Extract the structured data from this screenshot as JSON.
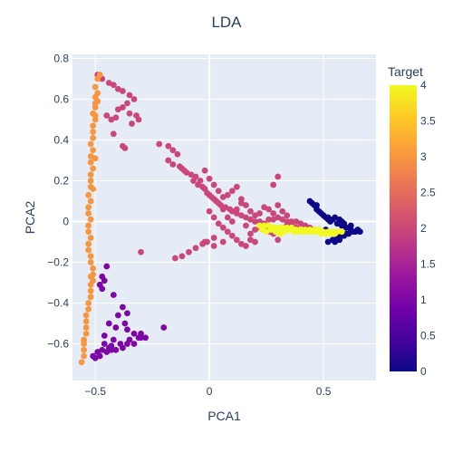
{
  "chart_data": {
    "type": "scatter",
    "title": "LDA",
    "xlabel": "PCA1",
    "ylabel": "PCA2",
    "xlim": [
      -0.6,
      0.73
    ],
    "ylim": [
      -0.78,
      0.82
    ],
    "x_ticks": [
      -0.5,
      0,
      0.5
    ],
    "x_tick_labels": [
      "−0.5",
      "0",
      "0.5"
    ],
    "y_ticks": [
      -0.6,
      -0.4,
      -0.2,
      0,
      0.2,
      0.4,
      0.6,
      0.8
    ],
    "y_tick_labels": [
      "−0.6",
      "−0.4",
      "−0.2",
      "0",
      "0.2",
      "0.4",
      "0.6",
      "0.8"
    ],
    "grid": true,
    "colorbar": {
      "title": "Target",
      "range": [
        0,
        4
      ],
      "ticks": [
        0,
        0.5,
        1,
        1.5,
        2,
        2.5,
        3,
        3.5,
        4
      ],
      "tick_labels": [
        "0",
        "0.5",
        "1",
        "1.5",
        "2",
        "2.5",
        "3",
        "3.5",
        "4"
      ],
      "colorscale": [
        "#0d0887",
        "#46039f",
        "#7201a8",
        "#9c179e",
        "#bd3786",
        "#d8576b",
        "#ed7953",
        "#fb9f3a",
        "#fdca26",
        "#f0f921"
      ]
    },
    "series": [
      {
        "target": 0,
        "points": [
          [
            0.44,
            0.1
          ],
          [
            0.45,
            0.09
          ],
          [
            0.46,
            0.08
          ],
          [
            0.47,
            0.06
          ],
          [
            0.48,
            0.05
          ],
          [
            0.49,
            0.04
          ],
          [
            0.5,
            0.03
          ],
          [
            0.51,
            0.02
          ],
          [
            0.52,
            0.01
          ],
          [
            0.53,
            0.0
          ],
          [
            0.52,
            0.02
          ],
          [
            0.55,
            0.02
          ],
          [
            0.57,
            0.01
          ],
          [
            0.58,
            0.0
          ],
          [
            0.56,
            -0.01
          ],
          [
            0.58,
            -0.02
          ],
          [
            0.6,
            -0.03
          ],
          [
            0.62,
            -0.04
          ],
          [
            0.64,
            -0.05
          ],
          [
            0.66,
            -0.05
          ],
          [
            0.6,
            -0.06
          ],
          [
            0.58,
            -0.07
          ],
          [
            0.56,
            -0.08
          ],
          [
            0.54,
            -0.09
          ],
          [
            0.52,
            -0.1
          ],
          [
            0.55,
            -0.1
          ],
          [
            0.57,
            -0.09
          ],
          [
            0.59,
            -0.07
          ],
          [
            0.61,
            -0.06
          ],
          [
            0.63,
            -0.05
          ],
          [
            0.65,
            -0.04
          ],
          [
            0.54,
            0.01
          ],
          [
            0.56,
            -0.06
          ],
          [
            0.51,
            -0.04
          ],
          [
            0.59,
            -0.01
          ],
          [
            0.62,
            -0.02
          ],
          [
            0.47,
            0.08
          ]
        ]
      },
      {
        "target": 1,
        "points": [
          [
            -0.45,
            -0.22
          ],
          [
            -0.47,
            -0.27
          ],
          [
            -0.46,
            -0.29
          ],
          [
            -0.48,
            -0.31
          ],
          [
            -0.47,
            -0.33
          ],
          [
            -0.42,
            -0.36
          ],
          [
            -0.38,
            -0.42
          ],
          [
            -0.36,
            -0.45
          ],
          [
            -0.4,
            -0.46
          ],
          [
            -0.44,
            -0.5
          ],
          [
            -0.41,
            -0.52
          ],
          [
            -0.36,
            -0.53
          ],
          [
            -0.33,
            -0.55
          ],
          [
            -0.31,
            -0.57
          ],
          [
            -0.35,
            -0.58
          ],
          [
            -0.39,
            -0.6
          ],
          [
            -0.43,
            -0.61
          ],
          [
            -0.47,
            -0.63
          ],
          [
            -0.49,
            -0.64
          ],
          [
            -0.46,
            -0.6
          ],
          [
            -0.44,
            -0.62
          ],
          [
            -0.41,
            -0.63
          ],
          [
            -0.38,
            -0.62
          ],
          [
            -0.36,
            -0.6
          ],
          [
            -0.33,
            -0.6
          ],
          [
            -0.3,
            -0.57
          ],
          [
            -0.2,
            -0.52
          ],
          [
            -0.28,
            -0.57
          ],
          [
            -0.5,
            -0.67
          ],
          [
            -0.51,
            -0.66
          ],
          [
            -0.48,
            -0.66
          ],
          [
            -0.45,
            -0.64
          ],
          [
            -0.43,
            -0.63
          ],
          [
            -0.42,
            -0.58
          ],
          [
            -0.37,
            -0.5
          ],
          [
            -0.3,
            -0.55
          ],
          [
            -0.46,
            -0.56
          ]
        ]
      },
      {
        "target": 2,
        "points": [
          [
            -0.49,
            0.72
          ],
          [
            -0.47,
            0.7
          ],
          [
            -0.44,
            0.68
          ],
          [
            -0.42,
            0.67
          ],
          [
            -0.4,
            0.65
          ],
          [
            -0.38,
            0.64
          ],
          [
            -0.35,
            0.62
          ],
          [
            -0.33,
            0.6
          ],
          [
            -0.36,
            0.58
          ],
          [
            -0.38,
            0.56
          ],
          [
            -0.4,
            0.55
          ],
          [
            -0.35,
            0.53
          ],
          [
            -0.32,
            0.52
          ],
          [
            -0.45,
            0.52
          ],
          [
            -0.41,
            0.51
          ],
          [
            -0.43,
            0.5
          ],
          [
            -0.31,
            0.5
          ],
          [
            -0.34,
            0.48
          ],
          [
            -0.42,
            0.43
          ],
          [
            -0.38,
            0.37
          ],
          [
            -0.37,
            0.36
          ],
          [
            -0.22,
            0.38
          ],
          [
            -0.18,
            0.37
          ],
          [
            -0.16,
            0.35
          ],
          [
            -0.14,
            0.33
          ],
          [
            -0.18,
            0.3
          ],
          [
            -0.16,
            0.28
          ],
          [
            -0.13,
            0.27
          ],
          [
            -0.12,
            0.26
          ],
          [
            -0.11,
            0.25
          ],
          [
            -0.1,
            0.24
          ],
          [
            -0.08,
            0.23
          ],
          [
            -0.06,
            0.22
          ],
          [
            -0.04,
            0.2
          ],
          [
            -0.07,
            0.2
          ],
          [
            -0.05,
            0.18
          ],
          [
            -0.03,
            0.17
          ],
          [
            -0.02,
            0.16
          ],
          [
            -0.01,
            0.14
          ],
          [
            0.0,
            0.13
          ],
          [
            0.01,
            0.12
          ],
          [
            0.02,
            0.11
          ],
          [
            0.03,
            0.1
          ],
          [
            0.04,
            0.09
          ],
          [
            0.05,
            0.08
          ],
          [
            0.07,
            0.07
          ],
          [
            0.09,
            0.06
          ],
          [
            0.1,
            0.05
          ],
          [
            0.12,
            0.04
          ],
          [
            0.14,
            0.03
          ],
          [
            0.16,
            0.02
          ],
          [
            0.18,
            0.01
          ],
          [
            0.2,
            0.0
          ],
          [
            0.22,
            0.0
          ],
          [
            0.24,
            -0.01
          ],
          [
            0.26,
            0.01
          ],
          [
            0.28,
            0.01
          ],
          [
            0.3,
            0.02
          ],
          [
            0.32,
            0.01
          ],
          [
            0.34,
            0.0
          ],
          [
            0.36,
            0.0
          ],
          [
            0.38,
            0.0
          ],
          [
            0.4,
            -0.01
          ],
          [
            0.42,
            -0.02
          ],
          [
            0.44,
            -0.03
          ],
          [
            0.46,
            -0.04
          ],
          [
            -0.02,
            0.25
          ],
          [
            0.0,
            0.21
          ],
          [
            0.02,
            0.18
          ],
          [
            0.04,
            0.15
          ],
          [
            0.06,
            0.12
          ],
          [
            0.08,
            0.13
          ],
          [
            0.1,
            0.15
          ],
          [
            0.12,
            0.17
          ],
          [
            0.14,
            0.11
          ],
          [
            0.16,
            0.08
          ],
          [
            0.18,
            0.05
          ],
          [
            0.2,
            0.03
          ],
          [
            0.22,
            0.04
          ],
          [
            0.24,
            0.07
          ],
          [
            0.26,
            0.06
          ],
          [
            0.28,
            0.04
          ],
          [
            0.3,
            0.08
          ],
          [
            0.32,
            0.05
          ],
          [
            0.34,
            0.03
          ],
          [
            0.0,
            0.05
          ],
          [
            0.02,
            0.02
          ],
          [
            0.04,
            -0.01
          ],
          [
            0.06,
            -0.03
          ],
          [
            0.08,
            -0.05
          ],
          [
            0.1,
            -0.07
          ],
          [
            0.12,
            -0.09
          ],
          [
            0.14,
            -0.11
          ],
          [
            0.16,
            -0.12
          ],
          [
            0.18,
            -0.06
          ],
          [
            0.2,
            -0.04
          ],
          [
            0.22,
            -0.03
          ],
          [
            0.24,
            -0.02
          ],
          [
            0.26,
            -0.04
          ],
          [
            0.28,
            -0.06
          ],
          [
            0.3,
            -0.09
          ],
          [
            0.32,
            -0.03
          ],
          [
            0.34,
            -0.02
          ],
          [
            0.36,
            -0.01
          ],
          [
            0.38,
            -0.03
          ],
          [
            0.4,
            -0.04
          ],
          [
            0.02,
            -0.08
          ],
          [
            -0.01,
            -0.1
          ],
          [
            -0.03,
            -0.11
          ],
          [
            -0.06,
            -0.13
          ],
          [
            -0.09,
            -0.15
          ],
          [
            -0.12,
            -0.17
          ],
          [
            -0.15,
            -0.18
          ],
          [
            -0.3,
            -0.15
          ],
          [
            0.06,
            0.06
          ],
          [
            0.08,
            0.02
          ],
          [
            0.1,
            0.0
          ],
          [
            0.12,
            0.06
          ],
          [
            0.14,
            0.09
          ],
          [
            0.16,
            -0.02
          ],
          [
            0.18,
            -0.09
          ],
          [
            0.2,
            -0.1
          ],
          [
            0.26,
            -0.05
          ],
          [
            0.28,
            0.18
          ],
          [
            0.3,
            0.22
          ],
          [
            0.02,
            -0.12
          ],
          [
            -0.02,
            -0.1
          ],
          [
            0.06,
            -0.1
          ]
        ]
      },
      {
        "target": 3,
        "points": [
          [
            -0.48,
            0.72
          ],
          [
            -0.49,
            0.7
          ],
          [
            -0.5,
            0.66
          ],
          [
            -0.49,
            0.63
          ],
          [
            -0.5,
            0.61
          ],
          [
            -0.5,
            0.58
          ],
          [
            -0.5,
            0.56
          ],
          [
            -0.51,
            0.53
          ],
          [
            -0.5,
            0.5
          ],
          [
            -0.51,
            0.47
          ],
          [
            -0.51,
            0.44
          ],
          [
            -0.51,
            0.41
          ],
          [
            -0.52,
            0.38
          ],
          [
            -0.51,
            0.35
          ],
          [
            -0.52,
            0.32
          ],
          [
            -0.52,
            0.29
          ],
          [
            -0.51,
            0.26
          ],
          [
            -0.52,
            0.23
          ],
          [
            -0.52,
            0.2
          ],
          [
            -0.52,
            0.17
          ],
          [
            -0.53,
            0.13
          ],
          [
            -0.52,
            0.1
          ],
          [
            -0.53,
            0.07
          ],
          [
            -0.53,
            0.04
          ],
          [
            -0.52,
            0.01
          ],
          [
            -0.53,
            -0.02
          ],
          [
            -0.53,
            -0.05
          ],
          [
            -0.52,
            -0.08
          ],
          [
            -0.53,
            -0.11
          ],
          [
            -0.53,
            -0.14
          ],
          [
            -0.52,
            -0.17
          ],
          [
            -0.52,
            -0.2
          ],
          [
            -0.51,
            -0.23
          ],
          [
            -0.51,
            -0.26
          ],
          [
            -0.51,
            -0.29
          ],
          [
            -0.52,
            -0.31
          ],
          [
            -0.52,
            -0.34
          ],
          [
            -0.52,
            -0.37
          ],
          [
            -0.53,
            -0.4
          ],
          [
            -0.53,
            -0.43
          ],
          [
            -0.54,
            -0.46
          ],
          [
            -0.54,
            -0.49
          ],
          [
            -0.54,
            -0.52
          ],
          [
            -0.54,
            -0.55
          ],
          [
            -0.55,
            -0.58
          ],
          [
            -0.55,
            -0.6
          ],
          [
            -0.55,
            -0.63
          ],
          [
            -0.55,
            -0.66
          ],
          [
            -0.56,
            -0.69
          ],
          [
            -0.51,
            0.16
          ],
          [
            -0.5,
            0.31
          ],
          [
            -0.5,
            0.52
          ],
          [
            -0.49,
            0.59
          ],
          [
            -0.52,
            -0.27
          ]
        ]
      },
      {
        "target": 4,
        "points": [
          [
            0.22,
            -0.02
          ],
          [
            0.24,
            -0.02
          ],
          [
            0.26,
            -0.02
          ],
          [
            0.28,
            -0.03
          ],
          [
            0.3,
            -0.03
          ],
          [
            0.32,
            -0.03
          ],
          [
            0.34,
            -0.03
          ],
          [
            0.36,
            -0.03
          ],
          [
            0.38,
            -0.04
          ],
          [
            0.4,
            -0.04
          ],
          [
            0.42,
            -0.04
          ],
          [
            0.44,
            -0.04
          ],
          [
            0.46,
            -0.04
          ],
          [
            0.48,
            -0.04
          ],
          [
            0.5,
            -0.05
          ],
          [
            0.52,
            -0.05
          ],
          [
            0.54,
            -0.05
          ],
          [
            0.56,
            -0.05
          ],
          [
            0.58,
            -0.05
          ],
          [
            0.23,
            -0.04
          ],
          [
            0.25,
            -0.05
          ],
          [
            0.27,
            -0.04
          ],
          [
            0.29,
            -0.05
          ],
          [
            0.31,
            -0.06
          ],
          [
            0.33,
            -0.05
          ],
          [
            0.35,
            -0.04
          ],
          [
            0.37,
            -0.05
          ],
          [
            0.39,
            -0.05
          ],
          [
            0.41,
            -0.05
          ],
          [
            0.43,
            -0.05
          ],
          [
            0.45,
            -0.05
          ],
          [
            0.47,
            -0.05
          ],
          [
            0.49,
            -0.06
          ],
          [
            0.51,
            -0.06
          ],
          [
            0.53,
            -0.06
          ],
          [
            0.55,
            -0.06
          ]
        ]
      }
    ]
  }
}
